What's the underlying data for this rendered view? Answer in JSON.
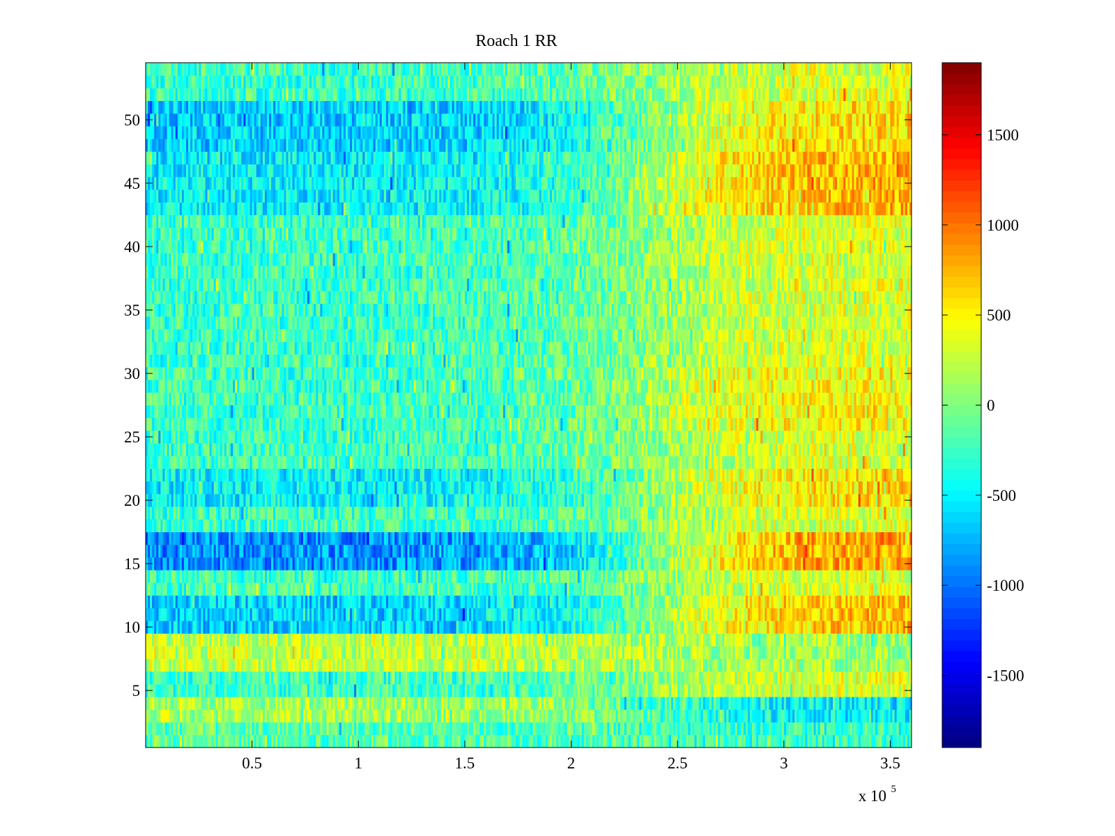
{
  "chart_data": {
    "type": "heatmap",
    "title": "Roach 1 RR",
    "xlabel": "",
    "ylabel": "",
    "x_exponent_label": "x 10",
    "x_exponent": "5",
    "xlim": [
      0,
      3.6
    ],
    "ylim": [
      0.5,
      54.5
    ],
    "x_ticks": [
      0.5,
      1,
      1.5,
      2,
      2.5,
      3,
      3.5
    ],
    "x_tick_labels": [
      "0.5",
      "1",
      "1.5",
      "2",
      "2.5",
      "3",
      "3.5"
    ],
    "y_ticks": [
      5,
      10,
      15,
      20,
      25,
      30,
      35,
      40,
      45,
      50
    ],
    "y_tick_labels": [
      "5",
      "10",
      "15",
      "20",
      "25",
      "30",
      "35",
      "40",
      "45",
      "50"
    ],
    "rows": 54,
    "columns": 360,
    "colormap": "jet",
    "colorbar": {
      "range": [
        -1900,
        1900
      ],
      "ticks": [
        1500,
        1000,
        500,
        0,
        -500,
        -1000,
        -1500
      ],
      "tick_labels": [
        "1500",
        "1000",
        "500",
        "0",
        "-500",
        "-1000",
        "-1500"
      ]
    },
    "row_profiles": {
      "description": "approximate value level per row band: [start_level, end_level] across x; value noise adds texture",
      "default": [
        -250,
        350
      ],
      "bands": [
        {
          "rows": [
            1,
            2
          ],
          "levels": [
            -150,
            -300
          ]
        },
        {
          "rows": [
            3,
            4
          ],
          "levels": [
            150,
            -500
          ]
        },
        {
          "rows": [
            7,
            9
          ],
          "levels": [
            250,
            100
          ]
        },
        {
          "rows": [
            10,
            12
          ],
          "levels": [
            -650,
            700
          ]
        },
        {
          "rows": [
            15,
            17
          ],
          "levels": [
            -900,
            850
          ]
        },
        {
          "rows": [
            20,
            22
          ],
          "levels": [
            -500,
            600
          ]
        },
        {
          "rows": [
            26,
            30
          ],
          "levels": [
            -250,
            500
          ]
        },
        {
          "rows": [
            43,
            47
          ],
          "levels": [
            -500,
            750
          ]
        },
        {
          "rows": [
            48,
            51
          ],
          "levels": [
            -650,
            600
          ]
        }
      ]
    },
    "colors": {
      "frame": "#000000",
      "background": "#ffffff"
    }
  }
}
